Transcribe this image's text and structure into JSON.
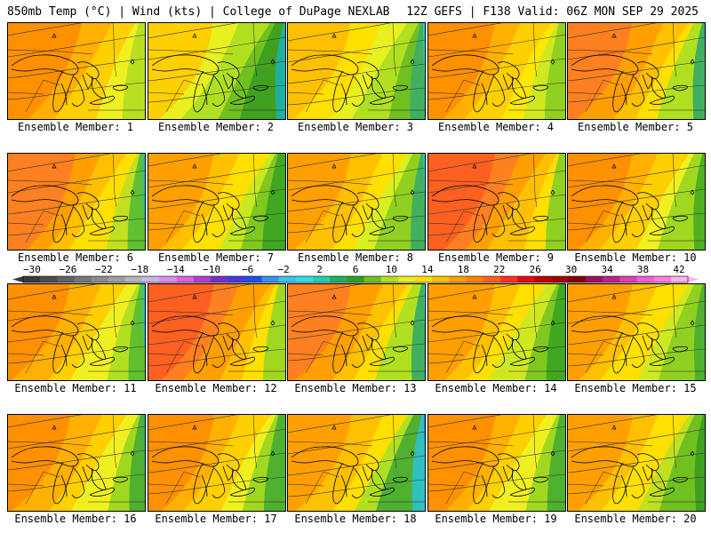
{
  "header": {
    "left": "850mb Temp (°C) | Wind (kts) | College of DuPage NEXLAB",
    "right": "12Z GEFS | F138 Valid: 06Z MON SEP 29 2025"
  },
  "panels": [
    {
      "label": "Ensemble Member: 1"
    },
    {
      "label": "Ensemble Member: 2"
    },
    {
      "label": "Ensemble Member: 3"
    },
    {
      "label": "Ensemble Member: 4"
    },
    {
      "label": "Ensemble Member: 5"
    },
    {
      "label": "Ensemble Member: 6"
    },
    {
      "label": "Ensemble Member: 7"
    },
    {
      "label": "Ensemble Member: 8"
    },
    {
      "label": "Ensemble Member: 9"
    },
    {
      "label": "Ensemble Member: 10"
    },
    {
      "label": "Ensemble Member: 11"
    },
    {
      "label": "Ensemble Member: 12"
    },
    {
      "label": "Ensemble Member: 13"
    },
    {
      "label": "Ensemble Member: 14"
    },
    {
      "label": "Ensemble Member: 15"
    },
    {
      "label": "Ensemble Member: 16"
    },
    {
      "label": "Ensemble Member: 17"
    },
    {
      "label": "Ensemble Member: 18"
    },
    {
      "label": "Ensemble Member: 19"
    },
    {
      "label": "Ensemble Member: 20"
    }
  ],
  "colorbar": {
    "labels": [
      "−30",
      "−26",
      "−22",
      "−18",
      "−14",
      "−10",
      "−6",
      "−2",
      "2",
      "6",
      "10",
      "14",
      "18",
      "22",
      "26",
      "30",
      "34",
      "38",
      "42"
    ],
    "colors": [
      "#3a3a3a",
      "#4e4e4e",
      "#626262",
      "#777777",
      "#8c8c8c",
      "#a1a1a1",
      "#b6b6b6",
      "#c8b4e8",
      "#d98fe8",
      "#e060e0",
      "#b040d0",
      "#7a30c8",
      "#4a3ad8",
      "#2050e8",
      "#3890f0",
      "#40c0f0",
      "#30e0e0",
      "#20d0b0",
      "#20b060",
      "#30a020",
      "#70c020",
      "#b0e020",
      "#e8f020",
      "#ffe000",
      "#ffc000",
      "#ffa000",
      "#ff8000",
      "#ff6020",
      "#ff3020",
      "#e01010",
      "#c00000",
      "#a00000",
      "#800000",
      "#a01060",
      "#c02090",
      "#e040b0",
      "#f060d0",
      "#ff80e0",
      "#ffb0f0"
    ]
  }
}
